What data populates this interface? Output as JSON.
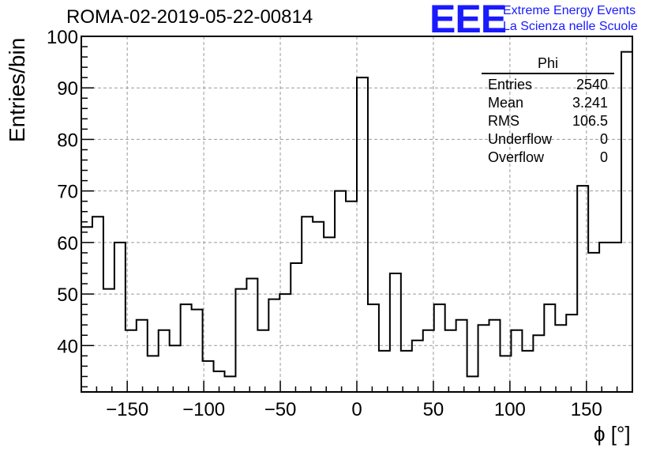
{
  "title": "ROMA-02-2019-05-22-00814",
  "logo": {
    "mark": "EEE",
    "line1": "Extreme Energy Events",
    "line2": "La Scienza nelle Scuole",
    "color": "#1a1aff"
  },
  "stats": {
    "name": "Phi",
    "rows": [
      {
        "label": "Entries",
        "value": "2540"
      },
      {
        "label": "Mean",
        "value": "3.241"
      },
      {
        "label": "RMS",
        "value": "106.5"
      },
      {
        "label": "Underflow",
        "value": "0"
      },
      {
        "label": "Overflow",
        "value": "0"
      }
    ]
  },
  "chart_data": {
    "type": "bar",
    "style": "step-histogram",
    "title": "ROMA-02-2019-05-22-00814",
    "xlabel": "ϕ [°]",
    "ylabel": "Entries/bin",
    "xlim": [
      -180,
      180
    ],
    "ylim": [
      31,
      100
    ],
    "grid": true,
    "bin_width": 7.2,
    "x_ticks": [
      -150,
      -100,
      -50,
      0,
      50,
      100,
      150
    ],
    "x_tick_labels": [
      "−150",
      "−100",
      "−50",
      "0",
      "50",
      "100",
      "150"
    ],
    "y_ticks": [
      40,
      50,
      60,
      70,
      80,
      90,
      100
    ],
    "values": [
      63,
      65,
      51,
      60,
      43,
      45,
      38,
      43,
      40,
      48,
      47,
      37,
      35,
      34,
      51,
      53,
      43,
      49,
      50,
      56,
      65,
      64,
      61,
      70,
      68,
      92,
      48,
      39,
      54,
      39,
      41,
      43,
      48,
      43,
      45,
      34,
      44,
      45,
      38,
      43,
      39,
      42,
      48,
      44,
      46,
      71,
      58,
      60,
      60,
      97
    ],
    "line_color": "#000000",
    "grid_color": "#9a9a9a"
  }
}
